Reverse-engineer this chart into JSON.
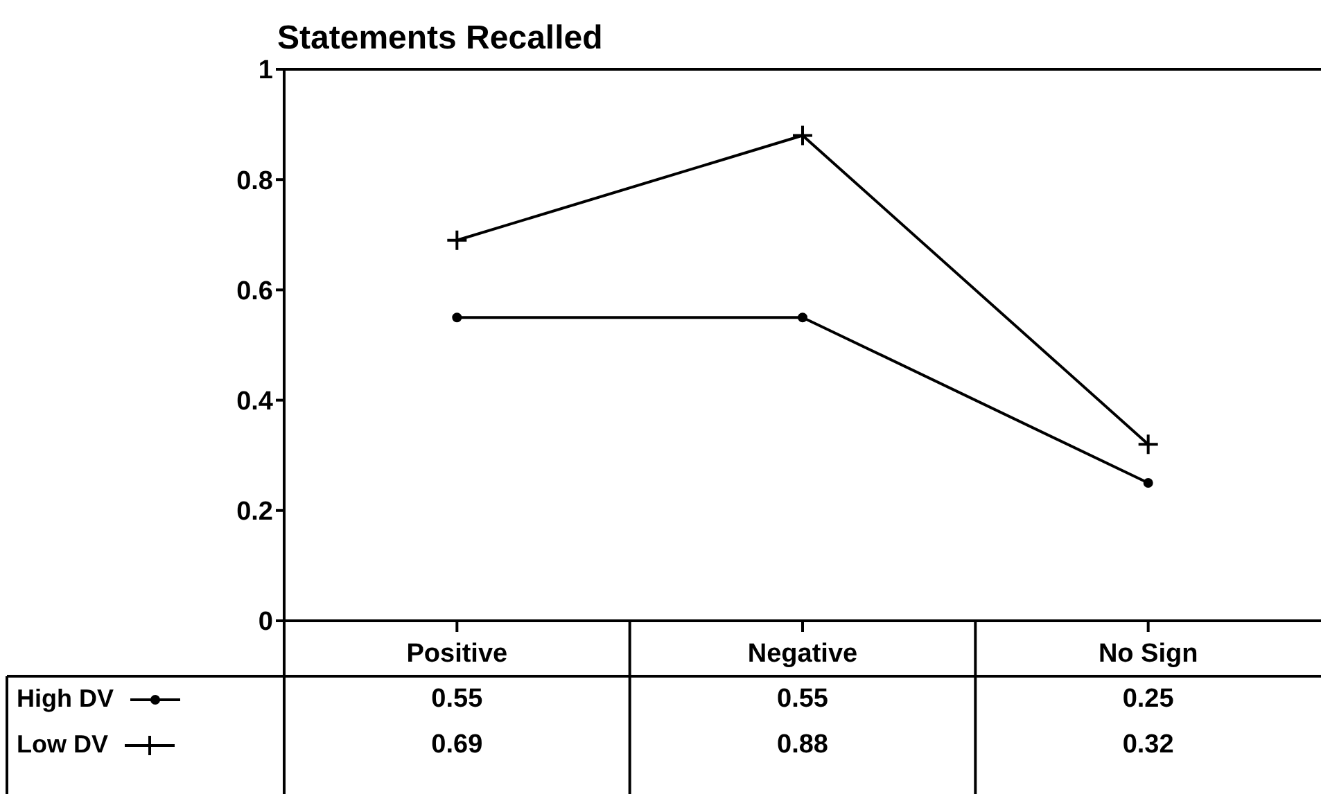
{
  "chart_data": {
    "type": "line",
    "title": "Statements Recalled",
    "categories": [
      "Positive",
      "Negative",
      "No Sign"
    ],
    "series": [
      {
        "name": "High DV",
        "color": "#000000",
        "marker": "circle",
        "values": [
          0.55,
          0.55,
          0.25
        ]
      },
      {
        "name": "Low DV",
        "color": "#000000",
        "marker": "cross",
        "values": [
          0.69,
          0.88,
          0.32
        ]
      }
    ],
    "ylim": [
      0,
      1
    ],
    "yticks": [
      0,
      0.2,
      0.4,
      0.6,
      0.8,
      1
    ],
    "grid": false,
    "legend": "bottom left",
    "data_labels": true,
    "line_style": "solid"
  }
}
